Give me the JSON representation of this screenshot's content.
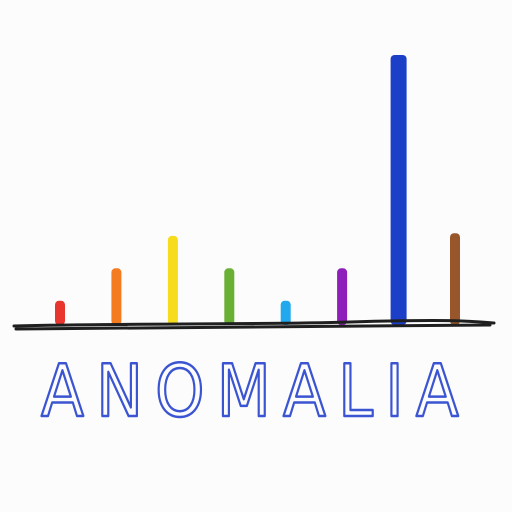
{
  "chart_data": {
    "type": "bar",
    "title": "ANOMALIA",
    "xlabel": "",
    "ylabel": "",
    "ylim": [
      0,
      100
    ],
    "grid": false,
    "legend": "none",
    "bars": [
      {
        "value": 9,
        "color": "#e8362f"
      },
      {
        "value": 21,
        "color": "#f47b1f"
      },
      {
        "value": 33,
        "color": "#f6dc1c"
      },
      {
        "value": 21,
        "color": "#6ab035"
      },
      {
        "value": 9,
        "color": "#22a8ec"
      },
      {
        "value": 21,
        "color": "#8e1fb8"
      },
      {
        "value": 100,
        "color": "#1b3fc6"
      },
      {
        "value": 34,
        "color": "#98562a"
      }
    ]
  },
  "colors": {
    "baseline": "#1f1f1f",
    "title": "#3b55d2",
    "background": "#fcfcfd"
  }
}
